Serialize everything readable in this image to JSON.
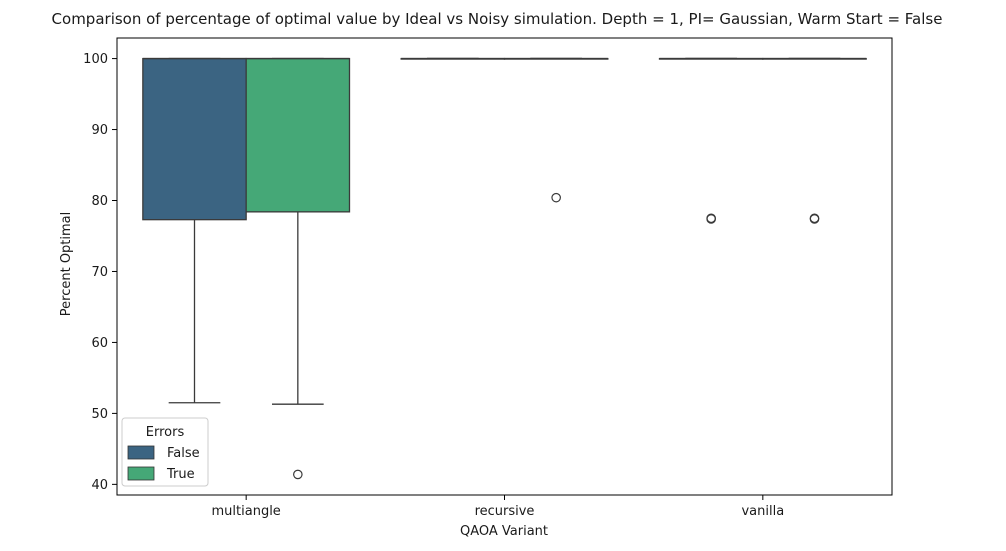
{
  "chart_data": {
    "type": "boxplot",
    "title": "Comparison of percentage of optimal value by Ideal vs Noisy simulation. Depth = 1, PI= Gaussian, Warm Start = False",
    "xlabel": "QAOA Variant",
    "ylabel": "Percent Optimal",
    "categories": [
      "multiangle",
      "recursive",
      "vanilla"
    ],
    "ylim": [
      38.5,
      102.9
    ],
    "yticks": [
      40,
      50,
      60,
      70,
      80,
      90,
      100
    ],
    "grid": false,
    "legend": {
      "title": "Errors",
      "placement": "lower-left"
    },
    "series": [
      {
        "name": "False",
        "color": "#3b6482",
        "boxes": [
          {
            "category": "multiangle",
            "whisker_low": 51.5,
            "q1": 77.3,
            "median": 100,
            "q3": 100,
            "whisker_high": 100,
            "outliers": []
          },
          {
            "category": "recursive",
            "whisker_low": 100,
            "q1": 100,
            "median": 100,
            "q3": 100,
            "whisker_high": 100,
            "outliers": []
          },
          {
            "category": "vanilla",
            "whisker_low": 100,
            "q1": 100,
            "median": 100,
            "q3": 100,
            "whisker_high": 100,
            "outliers": [
              77.4,
              77.5
            ]
          }
        ]
      },
      {
        "name": "True",
        "color": "#45a877",
        "boxes": [
          {
            "category": "multiangle",
            "whisker_low": 51.3,
            "q1": 78.4,
            "median": 100,
            "q3": 100,
            "whisker_high": 100,
            "outliers": [
              41.4
            ]
          },
          {
            "category": "recursive",
            "whisker_low": 100,
            "q1": 100,
            "median": 100,
            "q3": 100,
            "whisker_high": 100,
            "outliers": [
              80.4
            ]
          },
          {
            "category": "vanilla",
            "whisker_low": 100,
            "q1": 100,
            "median": 100,
            "q3": 100,
            "whisker_high": 100,
            "outliers": [
              77.4,
              77.5
            ]
          }
        ]
      }
    ]
  }
}
